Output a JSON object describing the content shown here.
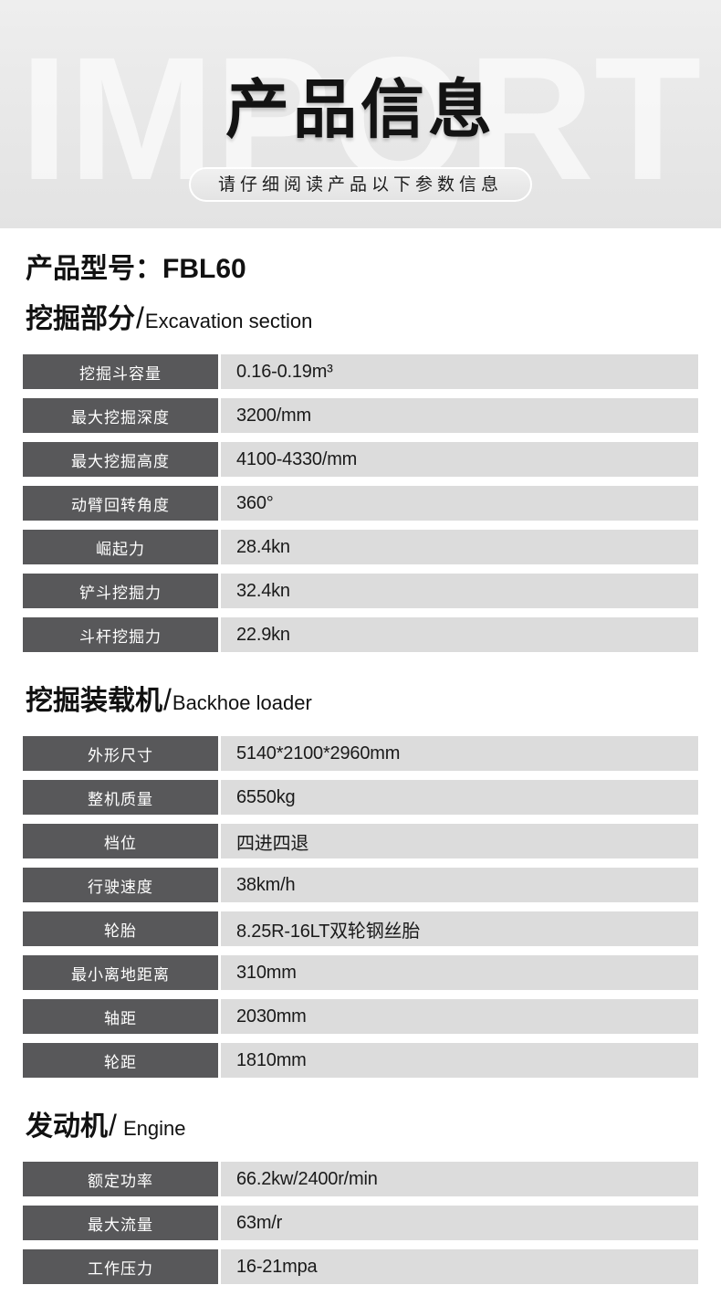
{
  "header": {
    "watermark": "IMPORT",
    "title": "产品信息",
    "subtitle": "请仔细阅读产品以下参数信息"
  },
  "content": {
    "model_label": "产品型号：FBL60"
  },
  "sections": [
    {
      "title_cn": "挖掘部分",
      "sep": "/",
      "title_en": "Excavation section",
      "rows": [
        {
          "label": "挖掘斗容量",
          "value": "0.16-0.19m³"
        },
        {
          "label": "最大挖掘深度",
          "value": "3200/mm"
        },
        {
          "label": "最大挖掘高度",
          "value": "4100-4330/mm"
        },
        {
          "label": "动臂回转角度",
          "value": "360°"
        },
        {
          "label": "崛起力",
          "value": "28.4kn"
        },
        {
          "label": "铲斗挖掘力",
          "value": "32.4kn"
        },
        {
          "label": "斗杆挖掘力",
          "value": "22.9kn"
        }
      ]
    },
    {
      "title_cn": "挖掘装载机",
      "sep": "/",
      "title_en": "Backhoe loader",
      "rows": [
        {
          "label": "外形尺寸",
          "value": "5140*2100*2960mm"
        },
        {
          "label": "整机质量",
          "value": "6550kg"
        },
        {
          "label": "档位",
          "value": "四进四退"
        },
        {
          "label": "行驶速度",
          "value": "38km/h"
        },
        {
          "label": "轮胎",
          "value": "8.25R-16LT双轮钢丝胎"
        },
        {
          "label": "最小离地距离",
          "value": "310mm"
        },
        {
          "label": "轴距",
          "value": "2030mm"
        },
        {
          "label": "轮距",
          "value": "1810mm"
        }
      ]
    },
    {
      "title_cn": "发动机",
      "sep": "/",
      "title_en": " Engine",
      "rows": [
        {
          "label": "额定功率",
          "value": "66.2kw/2400r/min"
        },
        {
          "label": "最大流量",
          "value": "63m/r"
        },
        {
          "label": "工作压力",
          "value": "16-21mpa"
        }
      ]
    }
  ],
  "colors": {
    "header_bg": "#e8e8e8",
    "watermark": "#f5f5f5",
    "label_cell_bg": "#58585a",
    "value_cell_bg": "#dcdcdc",
    "title_text": "#131313"
  }
}
